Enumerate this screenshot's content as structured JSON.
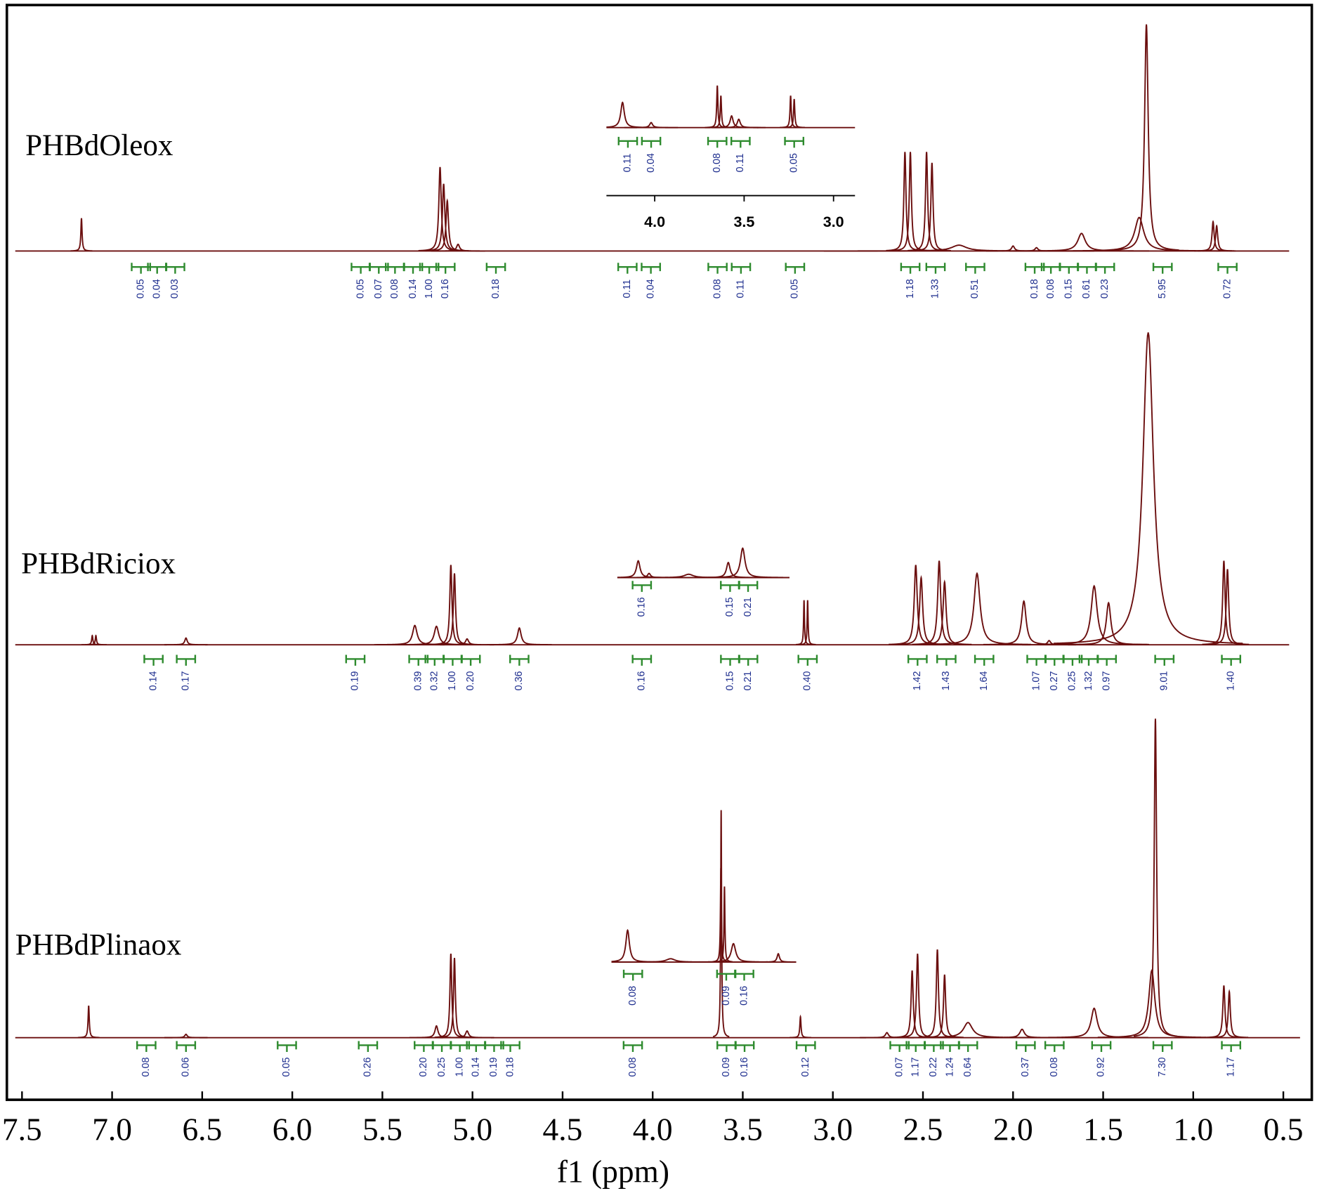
{
  "chart_data": {
    "type": "nmr",
    "xlabel": "f1 (ppm)",
    "xlim": [
      7.584,
      0.342
    ],
    "xticks": [
      7.5,
      {
        "value": 7,
        "label": "7.0"
      },
      6.5,
      {
        "value": 6,
        "label": "6.0"
      },
      5.5,
      {
        "value": 5,
        "label": "5.0"
      },
      4.5,
      {
        "value": 4,
        "label": "4.0"
      },
      3.5,
      {
        "value": 3,
        "label": "3.0"
      },
      2.5,
      {
        "value": 2,
        "label": "2.0"
      },
      1.5,
      {
        "value": 1,
        "label": "1.0"
      },
      0.5
    ],
    "ylim": [
      0,
      400
    ],
    "color": "#6b0f0f",
    "integral_color": "#2e8b2e",
    "integral_label_color": "#1f2f8f",
    "spectra": [
      {
        "name": "PHBdOleox",
        "peaks": {
          "ppm": [
            7.17,
            5.18,
            5.16,
            5.14,
            5.08,
            2.6,
            2.57,
            2.48,
            2.45,
            2.3,
            2.0,
            1.87,
            1.62,
            1.3,
            1.26,
            0.89,
            0.87
          ],
          "height": [
            39,
            100,
            80,
            60,
            8,
            118,
            118,
            118,
            105,
            7,
            6,
            4,
            21,
            40,
            270,
            35,
            30
          ],
          "width": [
            0.004,
            0.008,
            0.008,
            0.008,
            0.01,
            0.007,
            0.007,
            0.007,
            0.007,
            0.05,
            0.01,
            0.01,
            0.025,
            0.03,
            0.012,
            0.007,
            0.007
          ]
        },
        "integrals": {
          "ppm": [
            6.84,
            6.75,
            6.65,
            5.62,
            5.52,
            5.43,
            5.33,
            5.24,
            5.15,
            4.87,
            4.14,
            4.01,
            3.64,
            3.51,
            3.21,
            2.57,
            2.43,
            2.21,
            1.88,
            1.79,
            1.69,
            1.59,
            1.49,
            1.17,
            0.81
          ],
          "values": [
            0.05,
            0.04,
            0.03,
            0.05,
            0.07,
            0.08,
            0.14,
            1.0,
            0.16,
            0.18,
            0.11,
            0.04,
            0.08,
            0.11,
            0.05,
            1.18,
            1.33,
            0.51,
            0.18,
            0.08,
            0.15,
            0.61,
            0.23,
            5.95,
            0.72
          ],
          "value_labels": [
            "0.05",
            "0.04",
            "0.03",
            "0.05",
            "0.07",
            "0.08",
            "0.14",
            "1.00",
            "0.16",
            "0.18",
            "0.11",
            "0.04",
            "0.08",
            "0.11",
            "0.05",
            "1.18",
            "1.33",
            "0.51",
            "0.18",
            "0.08",
            "0.15",
            "0.61",
            "0.23",
            "5.95",
            "0.72"
          ]
        },
        "inset": {
          "xlim": [
            4.27,
            2.88
          ],
          "xticks": [
            {
              "value": 4,
              "label": "4.0"
            },
            3.5,
            {
              "value": 3,
              "label": "3.0"
            }
          ],
          "peaks": {
            "ppm": [
              4.18,
              4.02,
              3.65,
              3.63,
              3.57,
              3.53,
              3.24,
              3.22
            ],
            "height": [
              30,
              6,
              50,
              38,
              14,
              10,
              38,
              34
            ],
            "width": [
              0.012,
              0.01,
              0.004,
              0.004,
              0.01,
              0.01,
              0.004,
              0.004
            ]
          },
          "integrals": {
            "ppm": [
              4.15,
              4.02,
              3.65,
              3.52,
              3.22
            ],
            "values": [
              0.11,
              0.04,
              0.08,
              0.11,
              0.05
            ],
            "value_labels": [
              "0.11",
              "0.04",
              "0.08",
              "0.11",
              "0.05"
            ]
          }
        }
      },
      {
        "name": "PHBdRiciox",
        "peaks": {
          "ppm": [
            7.11,
            7.09,
            6.59,
            5.32,
            5.2,
            5.12,
            5.1,
            5.03,
            4.74,
            3.16,
            3.14,
            2.54,
            2.51,
            2.41,
            2.38,
            2.2,
            1.94,
            1.8,
            1.55,
            1.47,
            1.25,
            0.83,
            0.81
          ],
          "height": [
            11,
            11,
            8,
            23,
            22,
            95,
            85,
            7,
            20,
            53,
            53,
            95,
            80,
            100,
            75,
            85,
            52,
            5,
            70,
            50,
            372,
            100,
            90
          ],
          "width": [
            0.004,
            0.004,
            0.008,
            0.015,
            0.015,
            0.007,
            0.007,
            0.01,
            0.012,
            0.003,
            0.003,
            0.01,
            0.01,
            0.01,
            0.01,
            0.02,
            0.015,
            0.01,
            0.02,
            0.015,
            0.035,
            0.008,
            0.008
          ]
        },
        "integrals": {
          "ppm": [
            6.77,
            6.59,
            5.65,
            5.3,
            5.21,
            5.11,
            5.01,
            4.74,
            4.06,
            3.57,
            3.47,
            3.14,
            2.53,
            2.37,
            2.16,
            1.87,
            1.77,
            1.67,
            1.58,
            1.48,
            1.16,
            0.79
          ],
          "values": [
            0.14,
            0.17,
            0.19,
            0.39,
            0.32,
            1.0,
            0.2,
            0.36,
            0.16,
            0.15,
            0.21,
            0.4,
            1.42,
            1.43,
            1.64,
            1.07,
            0.27,
            0.25,
            1.32,
            0.97,
            9.01,
            1.4
          ],
          "value_labels": [
            "0.14",
            "0.17",
            "0.19",
            "0.39",
            "0.32",
            "1.00",
            "0.20",
            "0.36",
            "0.16",
            "0.15",
            "0.21",
            "0.40",
            "1.42",
            "1.43",
            "1.64",
            "1.07",
            "0.27",
            "0.25",
            "1.32",
            "0.97",
            "9.01",
            "1.40"
          ]
        },
        "inset": {
          "xlim": [
            4.196,
            3.24
          ],
          "peaks": {
            "ppm": [
              4.08,
              4.02,
              3.8,
              3.58,
              3.5
            ],
            "height": [
              20,
              5,
              4,
              18,
              35
            ],
            "width": [
              0.012,
              0.01,
              0.03,
              0.012,
              0.015
            ]
          },
          "integrals": {
            "ppm": [
              4.06,
              3.57,
              3.47
            ],
            "values": [
              0.16,
              0.15,
              0.21
            ],
            "value_labels": [
              "0.16",
              "0.15",
              "0.21"
            ]
          }
        }
      },
      {
        "name": "PHBdPlinaox",
        "peaks": {
          "ppm": [
            7.13,
            6.59,
            5.2,
            5.12,
            5.1,
            5.03,
            3.62,
            3.18,
            2.7,
            2.56,
            2.53,
            2.42,
            2.38,
            2.25,
            1.95,
            1.55,
            1.23,
            1.21,
            0.83,
            0.8
          ],
          "height": [
            38,
            4,
            14,
            100,
            95,
            8,
            271,
            25,
            6,
            80,
            100,
            105,
            75,
            18,
            10,
            35,
            80,
            380,
            62,
            55
          ],
          "width": [
            0.004,
            0.008,
            0.01,
            0.006,
            0.006,
            0.01,
            0.003,
            0.004,
            0.01,
            0.007,
            0.007,
            0.007,
            0.007,
            0.03,
            0.015,
            0.02,
            0.02,
            0.008,
            0.007,
            0.007
          ]
        },
        "integrals": {
          "ppm": [
            6.81,
            6.59,
            6.03,
            5.58,
            5.27,
            5.17,
            5.07,
            4.98,
            4.88,
            4.79,
            4.11,
            3.59,
            3.49,
            3.15,
            2.63,
            2.54,
            2.44,
            2.35,
            2.25,
            1.93,
            1.77,
            1.51,
            1.17,
            0.79
          ],
          "values": [
            0.08,
            0.06,
            0.05,
            0.26,
            0.2,
            0.25,
            1.0,
            0.14,
            0.19,
            0.18,
            0.08,
            0.09,
            0.16,
            0.12,
            0.07,
            1.17,
            0.22,
            1.24,
            0.64,
            0.37,
            0.08,
            0.92,
            7.3,
            1.17
          ],
          "value_labels": [
            "0.08",
            "0.06",
            "0.05",
            "0.26",
            "0.20",
            "0.25",
            "1.00",
            "0.14",
            "0.19",
            "0.18",
            "0.08",
            "0.09",
            "0.16",
            "0.12",
            "0.07",
            "1.17",
            "0.22",
            "1.24",
            "0.64",
            "0.37",
            "0.08",
            "0.92",
            "7.30",
            "1.17"
          ]
        },
        "inset": {
          "xlim": [
            4.23,
            3.2
          ],
          "peaks": {
            "ppm": [
              4.14,
              3.9,
              3.62,
              3.6,
              3.55,
              3.3
            ],
            "height": [
              38,
              4,
              112,
              90,
              22,
              10
            ],
            "width": [
              0.012,
              0.03,
              0.003,
              0.003,
              0.015,
              0.008
            ]
          },
          "integrals": {
            "ppm": [
              4.11,
              3.59,
              3.49
            ],
            "values": [
              0.08,
              0.09,
              0.16
            ],
            "value_labels": [
              "0.08",
              "0.09",
              "0.16"
            ]
          }
        }
      }
    ]
  }
}
